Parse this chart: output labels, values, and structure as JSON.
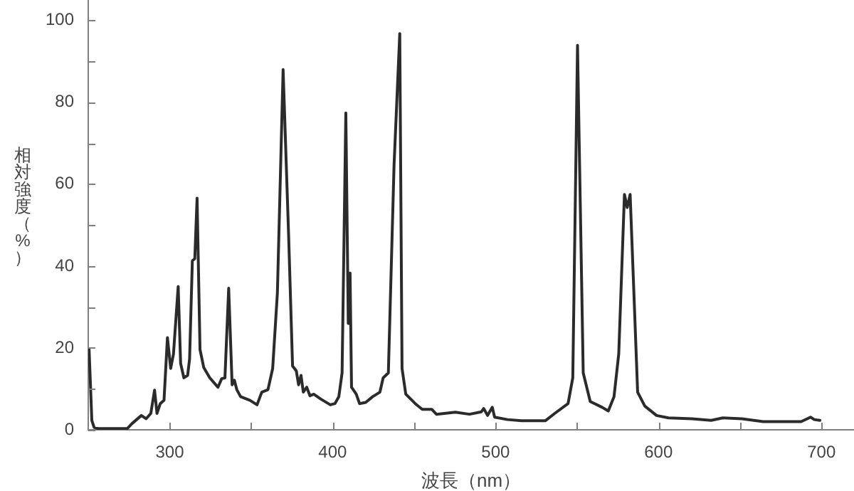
{
  "chart_data": {
    "type": "line",
    "xlabel": "波長（nm）",
    "ylabel": "相対強度（%）",
    "x": [
      250.5,
      252.2,
      253.6,
      256,
      273.9,
      276.8,
      282.6,
      285.5,
      288.4,
      290.7,
      292.2,
      294.2,
      296.5,
      298.6,
      300.6,
      302.3,
      305.2,
      306.7,
      308.7,
      311.0,
      312.2,
      313.9,
      315.4,
      316.8,
      318.6,
      320.9,
      324.6,
      329.6,
      331.9,
      333.9,
      336.2,
      338.3,
      339.7,
      341.2,
      343.5,
      349.3,
      353.6,
      356.5,
      360.3,
      363.2,
      366.1,
      369.6,
      373.0,
      375.4,
      377.7,
      379.1,
      380.6,
      382.0,
      384.1,
      386.1,
      388.4,
      392.8,
      398.6,
      401.4,
      403.8,
      405.8,
      408.1,
      409.6,
      410.7,
      411.6,
      414.5,
      416.5,
      420.3,
      424.6,
      429.0,
      431.0,
      434.2,
      437.7,
      441.2,
      442.6,
      444.9,
      450.7,
      455.0,
      460.8,
      463.7,
      475.3,
      484.0,
      491.3,
      492.7,
      495.1,
      498.0,
      499.4,
      507.3,
      516.0,
      530.5,
      536.3,
      544.5,
      547.4,
      550.3,
      553.8,
      558.1,
      565.4,
      569.2,
      572.7,
      575.6,
      579.1,
      580.8,
      582.6,
      584.9,
      587.2,
      591.6,
      598.8,
      606.1,
      620.6,
      632.3,
      639.5,
      651.2,
      664.2,
      687.5,
      691.3,
      693.3,
      695.6,
      699.1
    ],
    "series": [
      {
        "color": "#2b2b2b",
        "values": [
          19.8,
          2.3,
          0.6,
          0.3,
          0.3,
          1.5,
          3.5,
          2.7,
          4.0,
          9.7,
          4.0,
          6.4,
          7.2,
          22.5,
          15.0,
          18.5,
          35.0,
          16.2,
          12.7,
          13.3,
          17.3,
          41.3,
          41.8,
          56.6,
          19.6,
          15.2,
          12.7,
          10.4,
          12.5,
          12.7,
          34.6,
          11.0,
          12.1,
          9.8,
          8.1,
          7.2,
          6.1,
          9.2,
          9.8,
          15.0,
          33.5,
          88.0,
          47.3,
          15.6,
          14.4,
          11.0,
          13.3,
          9.2,
          10.4,
          8.3,
          8.7,
          7.5,
          6.1,
          6.4,
          8.1,
          13.9,
          77.4,
          26.0,
          38.3,
          10.4,
          8.7,
          6.4,
          6.7,
          8.1,
          9.2,
          12.7,
          13.9,
          64.7,
          96.8,
          15.0,
          8.7,
          6.4,
          5.0,
          5.0,
          3.8,
          4.3,
          3.8,
          4.4,
          5.2,
          3.5,
          5.5,
          3.1,
          2.5,
          2.2,
          2.2,
          4.0,
          6.4,
          12.7,
          93.9,
          13.9,
          6.9,
          5.5,
          4.6,
          8.1,
          18.5,
          57.5,
          54.3,
          57.5,
          33.5,
          9.2,
          5.8,
          3.5,
          2.9,
          2.7,
          2.3,
          2.9,
          2.7,
          2.0,
          2.0,
          2.7,
          3.1,
          2.5,
          2.3
        ]
      }
    ],
    "xlim": [
      250,
      720
    ],
    "xticks": [
      300,
      {
        "value": 350,
        "label": null
      },
      400,
      {
        "value": 450,
        "label": null
      },
      500,
      {
        "value": 550,
        "label": null
      },
      600,
      {
        "value": 650,
        "label": null
      },
      700
    ],
    "ylim": [
      0,
      105
    ],
    "yticks": [
      0,
      {
        "value": 10,
        "label": null
      },
      20,
      {
        "value": 30,
        "label": null
      },
      40,
      {
        "value": 50,
        "label": null
      },
      60,
      {
        "value": 70,
        "label": null
      },
      80,
      {
        "value": 90,
        "label": null
      },
      100
    ]
  }
}
